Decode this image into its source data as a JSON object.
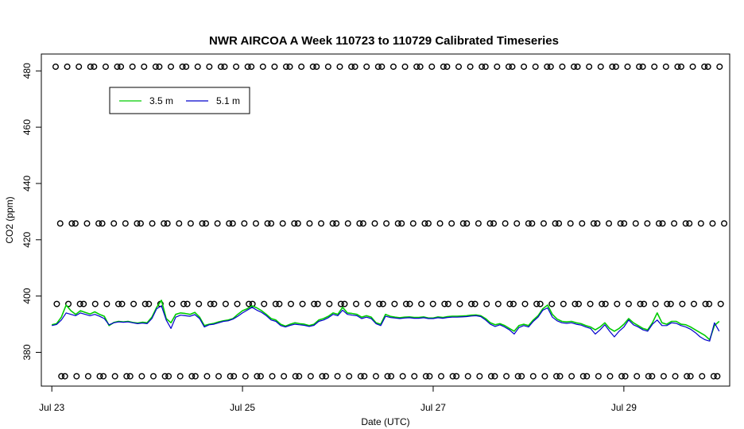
{
  "chart_data": {
    "type": "line",
    "title": "NWR AIRCOA A  Week 110723 to 110729  Calibrated Timeseries",
    "xlabel": "Date (UTC)",
    "ylabel": "CO2 (ppm)",
    "x_unit": "days from Jul 23 00:00 UTC",
    "xlim": [
      -0.11,
      7.11
    ],
    "ylim": [
      368,
      486
    ],
    "x_ticks": [
      {
        "value": 0,
        "label": "Jul 23"
      },
      {
        "value": 2,
        "label": "Jul 25"
      },
      {
        "value": 4,
        "label": "Jul 27"
      },
      {
        "value": 6,
        "label": "Jul 29"
      }
    ],
    "y_ticks": [
      380,
      400,
      420,
      440,
      460,
      480
    ],
    "legend": {
      "placement": "top-left",
      "entries": [
        {
          "name": "3.5 m",
          "color": "#00cc00"
        },
        {
          "name": "5.1 m",
          "color": "#0000cc"
        }
      ]
    },
    "series": [
      {
        "name": "3.5 m",
        "color": "#00cc00",
        "x": [
          0.0,
          0.05,
          0.1,
          0.15,
          0.2,
          0.25,
          0.3,
          0.35,
          0.4,
          0.45,
          0.5,
          0.55,
          0.6,
          0.65,
          0.7,
          0.75,
          0.8,
          0.85,
          0.9,
          0.95,
          1.0,
          1.05,
          1.1,
          1.15,
          1.2,
          1.25,
          1.3,
          1.35,
          1.4,
          1.45,
          1.5,
          1.55,
          1.6,
          1.65,
          1.7,
          1.75,
          1.8,
          1.85,
          1.9,
          1.95,
          2.0,
          2.05,
          2.1,
          2.15,
          2.2,
          2.25,
          2.3,
          2.35,
          2.4,
          2.45,
          2.5,
          2.55,
          2.6,
          2.65,
          2.7,
          2.75,
          2.8,
          2.85,
          2.9,
          2.95,
          3.0,
          3.05,
          3.1,
          3.15,
          3.2,
          3.25,
          3.3,
          3.35,
          3.4,
          3.45,
          3.5,
          3.55,
          3.6,
          3.65,
          3.7,
          3.75,
          3.8,
          3.85,
          3.9,
          3.95,
          4.0,
          4.05,
          4.1,
          4.15,
          4.2,
          4.25,
          4.3,
          4.35,
          4.4,
          4.45,
          4.5,
          4.55,
          4.6,
          4.65,
          4.7,
          4.75,
          4.8,
          4.85,
          4.9,
          4.95,
          5.0,
          5.05,
          5.1,
          5.15,
          5.2,
          5.25,
          5.3,
          5.35,
          5.4,
          5.45,
          5.5,
          5.55,
          5.6,
          5.65,
          5.7,
          5.75,
          5.8,
          5.85,
          5.9,
          5.95,
          6.0,
          6.05,
          6.1,
          6.15,
          6.2,
          6.25,
          6.3,
          6.35,
          6.4,
          6.45,
          6.5,
          6.55,
          6.6,
          6.65,
          6.7,
          6.75,
          6.8,
          6.85,
          6.9,
          6.95,
          7.0
        ],
        "values": [
          389.8,
          390.2,
          392.5,
          396.8,
          394.8,
          393.5,
          394.8,
          394.2,
          393.6,
          394.4,
          393.5,
          392.8,
          389.5,
          390.6,
          391.0,
          390.8,
          391.0,
          390.6,
          390.4,
          390.7,
          390.5,
          392.5,
          396.0,
          398.5,
          392.0,
          390.5,
          393.5,
          394.0,
          393.8,
          393.5,
          394.2,
          392.5,
          389.5,
          390.0,
          390.3,
          390.8,
          391.2,
          391.5,
          392.0,
          393.5,
          394.8,
          395.5,
          396.5,
          395.8,
          394.8,
          393.5,
          392.0,
          391.5,
          390.0,
          389.3,
          390.0,
          390.5,
          390.2,
          390.0,
          389.5,
          390.0,
          391.5,
          392.0,
          392.8,
          394.0,
          393.5,
          396.0,
          394.0,
          393.8,
          393.5,
          392.5,
          393.0,
          392.5,
          390.5,
          390.0,
          393.5,
          392.8,
          392.5,
          392.3,
          392.5,
          392.6,
          392.4,
          392.4,
          392.6,
          392.2,
          392.2,
          392.6,
          392.4,
          392.7,
          392.8,
          392.8,
          392.9,
          393.0,
          393.2,
          393.3,
          393.0,
          392.0,
          390.5,
          389.8,
          390.2,
          389.5,
          388.5,
          387.5,
          389.5,
          390.0,
          389.5,
          391.5,
          393.0,
          395.5,
          396.8,
          393.5,
          391.8,
          391.0,
          390.8,
          391.0,
          390.5,
          390.2,
          389.5,
          389.0,
          388.0,
          389.0,
          390.5,
          388.5,
          387.5,
          388.5,
          390.0,
          392.0,
          390.5,
          389.5,
          388.5,
          388.0,
          390.5,
          394.0,
          390.5,
          390.0,
          391.0,
          391.0,
          390.0,
          389.8,
          389.0,
          388.0,
          387.0,
          386.0,
          384.5,
          389.5,
          391.0
        ],
        "closed_sections": [
          [
            0.0,
            2.35
          ],
          [
            2.35,
            7.0
          ]
        ]
      },
      {
        "name": "5.1 m",
        "color": "#0000cc",
        "x": [
          0.0,
          0.05,
          0.1,
          0.15,
          0.2,
          0.25,
          0.3,
          0.35,
          0.4,
          0.45,
          0.5,
          0.55,
          0.6,
          0.65,
          0.7,
          0.75,
          0.8,
          0.85,
          0.9,
          0.95,
          1.0,
          1.05,
          1.1,
          1.15,
          1.2,
          1.25,
          1.3,
          1.35,
          1.4,
          1.45,
          1.5,
          1.55,
          1.6,
          1.65,
          1.7,
          1.75,
          1.8,
          1.85,
          1.9,
          1.95,
          2.0,
          2.05,
          2.1,
          2.15,
          2.2,
          2.25,
          2.3,
          2.35,
          2.4,
          2.45,
          2.5,
          2.55,
          2.6,
          2.65,
          2.7,
          2.75,
          2.8,
          2.85,
          2.9,
          2.95,
          3.0,
          3.05,
          3.1,
          3.15,
          3.2,
          3.25,
          3.3,
          3.35,
          3.4,
          3.45,
          3.5,
          3.55,
          3.6,
          3.65,
          3.7,
          3.75,
          3.8,
          3.85,
          3.9,
          3.95,
          4.0,
          4.05,
          4.1,
          4.15,
          4.2,
          4.25,
          4.3,
          4.35,
          4.4,
          4.45,
          4.5,
          4.55,
          4.6,
          4.65,
          4.7,
          4.75,
          4.8,
          4.85,
          4.9,
          4.95,
          5.0,
          5.05,
          5.1,
          5.15,
          5.2,
          5.25,
          5.3,
          5.35,
          5.4,
          5.45,
          5.5,
          5.55,
          5.6,
          5.65,
          5.7,
          5.75,
          5.8,
          5.85,
          5.9,
          5.95,
          6.0,
          6.05,
          6.1,
          6.15,
          6.2,
          6.25,
          6.3,
          6.35,
          6.4,
          6.45,
          6.5,
          6.55,
          6.6,
          6.65,
          6.7,
          6.75,
          6.8,
          6.85,
          6.9,
          6.95,
          7.0
        ],
        "values": [
          389.5,
          389.9,
          391.5,
          394.0,
          393.5,
          393.0,
          394.0,
          393.5,
          393.0,
          393.5,
          392.8,
          392.0,
          389.8,
          390.5,
          390.8,
          390.7,
          390.8,
          390.5,
          390.2,
          390.4,
          390.2,
          392.0,
          395.5,
          396.5,
          391.5,
          388.5,
          392.5,
          393.2,
          393.0,
          392.8,
          393.4,
          392.0,
          389.0,
          389.8,
          390.0,
          390.5,
          391.0,
          391.2,
          391.8,
          392.8,
          394.0,
          395.0,
          396.0,
          395.0,
          394.2,
          393.0,
          391.5,
          391.0,
          389.5,
          389.0,
          389.6,
          390.0,
          389.8,
          389.6,
          389.2,
          389.6,
          391.0,
          391.5,
          392.3,
          393.5,
          393.0,
          395.0,
          393.5,
          393.2,
          393.0,
          392.0,
          392.5,
          392.0,
          390.2,
          389.5,
          392.8,
          392.4,
          392.2,
          392.0,
          392.2,
          392.3,
          392.1,
          392.1,
          392.3,
          392.0,
          392.0,
          392.3,
          392.1,
          392.4,
          392.5,
          392.5,
          392.6,
          392.7,
          392.9,
          393.0,
          392.7,
          391.5,
          390.0,
          389.2,
          389.8,
          389.0,
          388.0,
          386.5,
          388.8,
          389.5,
          389.0,
          391.0,
          392.5,
          395.0,
          395.8,
          392.5,
          391.2,
          390.5,
          390.3,
          390.5,
          390.0,
          389.7,
          389.0,
          388.5,
          386.5,
          388.0,
          389.8,
          387.5,
          385.5,
          387.5,
          389.0,
          391.5,
          389.8,
          389.0,
          388.0,
          387.5,
          390.0,
          391.5,
          389.5,
          389.5,
          390.5,
          390.3,
          389.5,
          389.0,
          388.2,
          387.0,
          385.5,
          384.5,
          384.0,
          390.5,
          387.5
        ]
      },
      {
        "name": "",
        "kind": "calibration-points",
        "rows": [
          {
            "y": 481.5,
            "count": 72
          },
          {
            "y": 425.8,
            "count": 72
          },
          {
            "y": 397.2,
            "count": 72
          },
          {
            "y": 371.5,
            "count": 72
          }
        ]
      }
    ]
  }
}
